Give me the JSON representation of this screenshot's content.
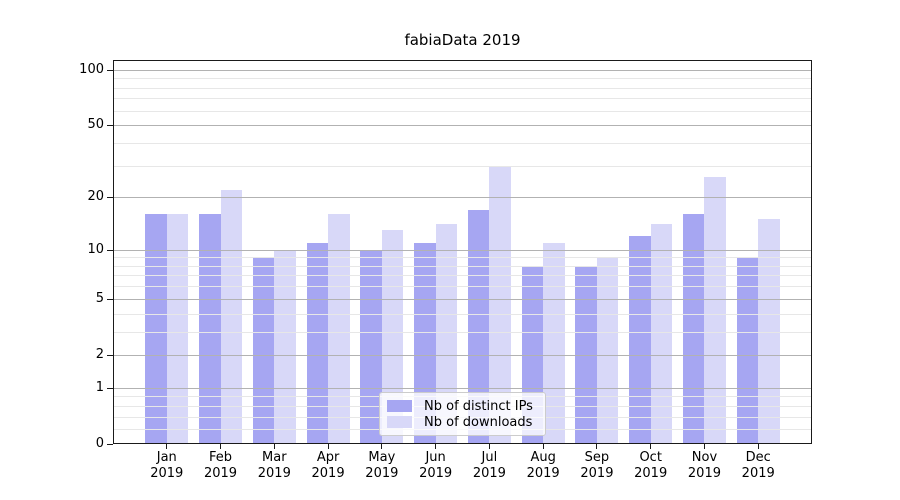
{
  "title": "fabiaData 2019",
  "chart_data": {
    "type": "bar",
    "title": "fabiaData 2019",
    "categories": [
      "Jan",
      "Feb",
      "Mar",
      "Apr",
      "May",
      "Jun",
      "Jul",
      "Aug",
      "Sep",
      "Oct",
      "Nov",
      "Dec"
    ],
    "category_year": "2019",
    "series": [
      {
        "name": "Nb of distinct IPs",
        "color": "#a6a6f2",
        "values": [
          16,
          16,
          9,
          11,
          10,
          11,
          17,
          8,
          8,
          12,
          16,
          9
        ]
      },
      {
        "name": "Nb of downloads",
        "color": "#d8d8f8",
        "values": [
          16,
          22,
          10,
          16,
          13,
          14,
          30,
          11,
          9,
          14,
          26,
          15
        ]
      }
    ],
    "yscale": "log1p",
    "ylim": [
      0,
      113
    ],
    "y_major_ticks": [
      0,
      1,
      2,
      5,
      10,
      20,
      50,
      100
    ],
    "y_minor_ticks": [
      0.2,
      0.4,
      0.6,
      0.8,
      3,
      4,
      6,
      7,
      8,
      9,
      30,
      40,
      60,
      70,
      80,
      90
    ],
    "grid": "horizontal",
    "legend_position": "lower center",
    "colors": {
      "axis": "#1a1a1a",
      "major_grid": "#b2b2b2",
      "minor_grid": "#e7e7e7",
      "background": "#ffffff"
    }
  },
  "legend": {
    "items": [
      {
        "label": "Nb of distinct IPs"
      },
      {
        "label": "Nb of downloads"
      }
    ]
  }
}
